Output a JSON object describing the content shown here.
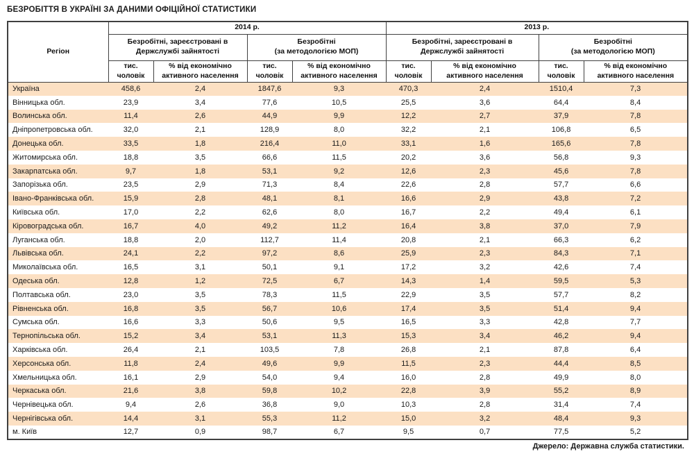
{
  "title": "БЕЗРОБІТТЯ В УКРАЇНІ ЗА ДАНИМИ ОФІЦІЙНОЇ СТАТИСТИКИ",
  "footer": "Джерело: Державна служба статистики.",
  "colors": {
    "stripe": "#fce0c3",
    "border": "#3f3f3f"
  },
  "table": {
    "region_header": "Регіон",
    "year_2014": "2014 р.",
    "year_2013": "2013 р.",
    "group_registered": "Безробітні, зареєстровані в\nДержслужбі зайнятості",
    "group_ilo": "Безробітні\n(за методологією МОП)",
    "sub_thousands": "тис.\nчоловік",
    "sub_percent": "% від економічно\nактивного населення",
    "rows": [
      {
        "region": "Україна",
        "values": [
          "458,6",
          "2,4",
          "1847,6",
          "9,3",
          "470,3",
          "2,4",
          "1510,4",
          "7,3"
        ]
      },
      {
        "region": "Вінницька обл.",
        "values": [
          "23,9",
          "3,4",
          "77,6",
          "10,5",
          "25,5",
          "3,6",
          "64,4",
          "8,4"
        ]
      },
      {
        "region": "Волинська обл.",
        "values": [
          "11,4",
          "2,6",
          "44,9",
          "9,9",
          "12,2",
          "2,7",
          "37,9",
          "7,8"
        ]
      },
      {
        "region": "Дніпропетровська обл.",
        "values": [
          "32,0",
          "2,1",
          "128,9",
          "8,0",
          "32,2",
          "2,1",
          "106,8",
          "6,5"
        ]
      },
      {
        "region": "Донецька обл.",
        "values": [
          "33,5",
          "1,8",
          "216,4",
          "11,0",
          "33,1",
          "1,6",
          "165,6",
          "7,8"
        ]
      },
      {
        "region": "Житомирська обл.",
        "values": [
          "18,8",
          "3,5",
          "66,6",
          "11,5",
          "20,2",
          "3,6",
          "56,8",
          "9,3"
        ]
      },
      {
        "region": "Закарпатська обл.",
        "values": [
          "9,7",
          "1,8",
          "53,1",
          "9,2",
          "12,6",
          "2,3",
          "45,6",
          "7,8"
        ]
      },
      {
        "region": "Запорізька обл.",
        "values": [
          "23,5",
          "2,9",
          "71,3",
          "8,4",
          "22,6",
          "2,8",
          "57,7",
          "6,6"
        ]
      },
      {
        "region": "Івано-Франківська обл.",
        "values": [
          "15,9",
          "2,8",
          "48,1",
          "8,1",
          "16,6",
          "2,9",
          "43,8",
          "7,2"
        ]
      },
      {
        "region": "Київська обл.",
        "values": [
          "17,0",
          "2,2",
          "62,6",
          "8,0",
          "16,7",
          "2,2",
          "49,4",
          "6,1"
        ]
      },
      {
        "region": "Кіровоградська обл.",
        "values": [
          "16,7",
          "4,0",
          "49,2",
          "11,2",
          "16,4",
          "3,8",
          "37,0",
          "7,9"
        ]
      },
      {
        "region": "Луганська обл.",
        "values": [
          "18,8",
          "2,0",
          "112,7",
          "11,4",
          "20,8",
          "2,1",
          "66,3",
          "6,2"
        ]
      },
      {
        "region": "Львівська обл.",
        "values": [
          "24,1",
          "2,2",
          "97,2",
          "8,6",
          "25,9",
          "2,3",
          "84,3",
          "7,1"
        ]
      },
      {
        "region": "Миколаївська обл.",
        "values": [
          "16,5",
          "3,1",
          "50,1",
          "9,1",
          "17,2",
          "3,2",
          "42,6",
          "7,4"
        ]
      },
      {
        "region": "Одеська обл.",
        "values": [
          "12,8",
          "1,2",
          "72,5",
          "6,7",
          "14,3",
          "1,4",
          "59,5",
          "5,3"
        ]
      },
      {
        "region": "Полтавська обл.",
        "values": [
          "23,0",
          "3,5",
          "78,3",
          "11,5",
          "22,9",
          "3,5",
          "57,7",
          "8,2"
        ]
      },
      {
        "region": "Рівненська обл.",
        "values": [
          "16,8",
          "3,5",
          "56,7",
          "10,6",
          "17,4",
          "3,5",
          "51,4",
          "9,4"
        ]
      },
      {
        "region": "Сумська обл.",
        "values": [
          "16,6",
          "3,3",
          "50,6",
          "9,5",
          "16,5",
          "3,3",
          "42,8",
          "7,7"
        ]
      },
      {
        "region": "Тернопільська обл.",
        "values": [
          "15,2",
          "3,4",
          "53,1",
          "11,3",
          "15,3",
          "3,4",
          "46,2",
          "9,4"
        ]
      },
      {
        "region": "Харківська обл.",
        "values": [
          "26,4",
          "2,1",
          "103,5",
          "7,8",
          "26,8",
          "2,1",
          "87,8",
          "6,4"
        ]
      },
      {
        "region": "Херсонська обл.",
        "values": [
          "11,8",
          "2,4",
          "49,6",
          "9,9",
          "11,5",
          "2,3",
          "44,4",
          "8,5"
        ]
      },
      {
        "region": "Хмельницька обл.",
        "values": [
          "16,1",
          "2,9",
          "54,0",
          "9,4",
          "16,0",
          "2,8",
          "49,9",
          "8,0"
        ]
      },
      {
        "region": "Черкаська обл.",
        "values": [
          "21,6",
          "3,8",
          "59,8",
          "10,2",
          "22,8",
          "3,9",
          "55,2",
          "8,9"
        ]
      },
      {
        "region": "Чернівецька обл.",
        "values": [
          "9,4",
          "2,6",
          "36,8",
          "9,0",
          "10,3",
          "2,8",
          "31,4",
          "7,4"
        ]
      },
      {
        "region": "Чернігівська обл.",
        "values": [
          "14,4",
          "3,1",
          "55,3",
          "11,2",
          "15,0",
          "3,2",
          "48,4",
          "9,3"
        ]
      },
      {
        "region": "м. Київ",
        "values": [
          "12,7",
          "0,9",
          "98,7",
          "6,7",
          "9,5",
          "0,7",
          "77,5",
          "5,2"
        ]
      }
    ]
  }
}
